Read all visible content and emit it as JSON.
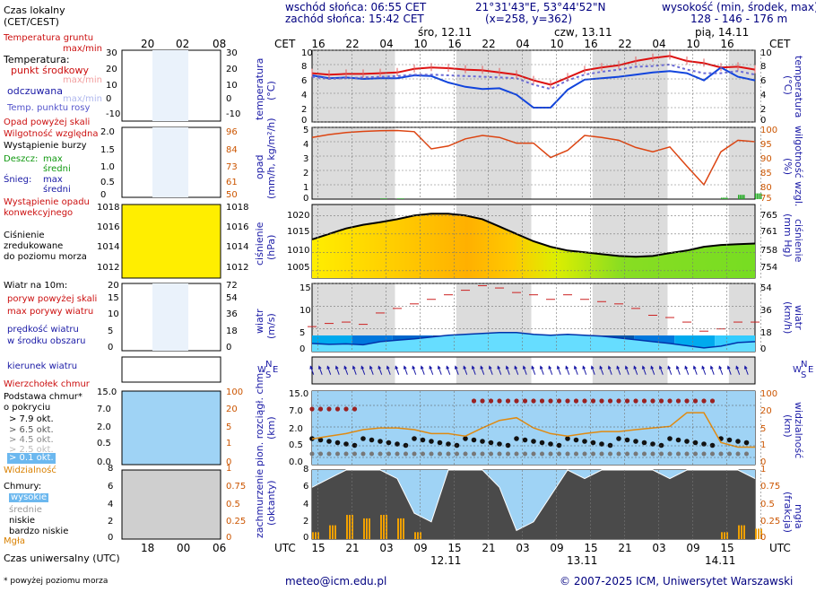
{
  "header": {
    "sunrise": "wschód słońca: 06:55 CET",
    "sunset": "zachód słońca: 15:42 CET",
    "coords": "21°31'43\"E, 53°44'52\"N",
    "grid": "(x=258,  y=362)",
    "elev_label": "wysokość (min, środek, max)",
    "elev_values": "128 - 146 - 176 m"
  },
  "top_axis": {
    "cet": "CET",
    "days": [
      "śro, 12.11",
      "czw, 13.11",
      "pią, 14.11"
    ],
    "hours": [
      "16",
      "22",
      "04",
      "10",
      "16",
      "22",
      "04",
      "10",
      "16",
      "22",
      "04",
      "10",
      "16"
    ]
  },
  "bottom_axis": {
    "utc": "UTC",
    "hours": [
      "15",
      "21",
      "03",
      "09",
      "15",
      "21",
      "03",
      "09",
      "15",
      "21",
      "03",
      "09",
      "15"
    ],
    "dates": [
      "12.11",
      "13.11",
      "14.11"
    ]
  },
  "legend": {
    "local_time": "Czas lokalny",
    "local_time_zone": "(CET/CEST)",
    "small_top_hours": [
      "20",
      "02",
      "08"
    ],
    "small_bottom_hours": [
      "18",
      "00",
      "06"
    ],
    "ground_temp": "Temperatura gruntu",
    "maxmin": "max/min",
    "temperature": "Temperatura:",
    "mid_point": "punkt środkowy",
    "max_min": "max/min",
    "felt": "odczuwana",
    "felt_maxmin": "max/min",
    "dew_point": "Temp. punktu rosy",
    "precip_above": "Opad powyżej skali",
    "humidity": "Wilgotność względna",
    "storm": "Wystąpienie burzy",
    "rain": "Deszcz:",
    "max": "max",
    "avg": "średni",
    "snow": "Śnieg:",
    "snow_max": "max",
    "snow_avg": "średni",
    "precip_occur_1": "Wystąpienie opadu",
    "precip_occur_2": "konwekcyjnego",
    "pressure_1": "Ciśnienie",
    "pressure_2": "zredukowane",
    "pressure_3": "do poziomu morza",
    "wind_10m": "Wiatr na 10m:",
    "gusts_above": "poryw powyżej skali",
    "max_gusts": "max porywy wiatru",
    "wind_speed_1": "prędkość wiatru",
    "wind_speed_2": "w środku obszaru",
    "wind_dir": "kierunek wiatru",
    "cloud_top": "Wierzchołek chmur",
    "cloud_base_1": "Podstawa chmur*",
    "cloud_base_2": "o pokryciu",
    "okt": [
      "> 7.9 okt.",
      "> 6.5 okt.",
      "> 4.5 okt.",
      "> 2.5 okt.",
      "> 0.1 okt."
    ],
    "visibility": "Widzialność",
    "clouds": "Chmury:",
    "high": "wysokie",
    "middle": "średnie",
    "low": "niskie",
    "very_low": "bardzo niskie",
    "fog": "Mgła",
    "utc_label": "Czas uniwersalny (UTC)",
    "footnote": "* powyżej poziomu morza"
  },
  "axis_labels": {
    "temp_left": "temperatura",
    "temp_left_unit": "(°C)",
    "temp_right": "temperatura",
    "temp_right_unit": "(°C)",
    "precip_left": "opad",
    "precip_left_unit": "(mm/h, kg/m²/h)",
    "precip_right": "wilgotność wzgl.",
    "precip_right_unit": "(%)",
    "press_left": "ciśnienie",
    "press_left_unit": "(hPa)",
    "press_right": "ciśnienie",
    "press_right_unit": "(mm Hg)",
    "wind_left": "wiatr",
    "wind_left_unit": "(m/s)",
    "wind_right": "wiatr",
    "wind_right_unit": "(km/h)",
    "cloudbase_left": "pion. rozciągł. chm.",
    "cloudbase_left_unit": "(km)",
    "cloudbase_right": "widzialność",
    "cloudbase_right_unit": "(km)",
    "cover_left": "zachmurzenie",
    "cover_left_unit": "(oktanty)",
    "cover_right": "mgła",
    "cover_right_unit": "(frakcja)"
  },
  "ticks": {
    "temp": [
      "10",
      "8",
      "6",
      "4",
      "2",
      "0"
    ],
    "precip_left": [
      "5",
      "4",
      "3",
      "2",
      "1",
      "0"
    ],
    "precip_right": [
      "100",
      "95",
      "90",
      "85",
      "80",
      "75"
    ],
    "press_left": [
      "1020",
      "1015",
      "1010",
      "1005"
    ],
    "press_right": [
      "765",
      "761",
      "758",
      "754"
    ],
    "wind_left": [
      "15",
      "10",
      "5",
      "0"
    ],
    "wind_right": [
      "54",
      "36",
      "18",
      "0"
    ],
    "cb_left": [
      "15.0",
      "7.0",
      "2.0",
      "0.5",
      "0.0"
    ],
    "cb_right": [
      "100",
      "20",
      "5",
      "1",
      "0"
    ],
    "cov_left": [
      "8",
      "6",
      "4",
      "2",
      "0"
    ],
    "cov_right": [
      "1",
      "0.75",
      "0.5",
      "0.25",
      "0"
    ],
    "leg_temp_l": [
      "30",
      "20",
      "10",
      "0",
      "-10"
    ],
    "leg_temp_r": [
      "30",
      "20",
      "10",
      "0",
      "-10"
    ],
    "leg_prec_l": [
      "2.0",
      "1.5",
      "1.0",
      "0.5",
      "0"
    ],
    "leg_prec_r": [
      "96",
      "84",
      "73",
      "61",
      "50"
    ],
    "leg_press_l": [
      "1018",
      "1016",
      "1014",
      "1012"
    ],
    "leg_press_r": [
      "1018",
      "1016",
      "1014",
      "1012"
    ],
    "leg_wind_l": [
      "20",
      "15",
      "10",
      "5",
      "0"
    ],
    "leg_wind_r": [
      "72",
      "54",
      "36",
      "18",
      "0"
    ],
    "leg_cb_l": [
      "15.0",
      "7.0",
      "2.0",
      "0.5",
      "0.0"
    ],
    "leg_cb_r": [
      "100",
      "20",
      "5",
      "1",
      "0"
    ],
    "leg_cov_l": [
      "8",
      "6",
      "4",
      "2",
      "0"
    ],
    "leg_cov_r": [
      "1",
      "0.75",
      "0.5",
      "0.25",
      "0"
    ]
  },
  "wind_dir_letters": {
    "n": "N",
    "w": "W",
    "s": "S",
    "e": "E"
  },
  "footer": {
    "email": "meteo@icm.edu.pl",
    "copyright": "© 2007-2025 ICM, Uniwersytet Warszawski"
  },
  "colors": {
    "red": "#dd1111",
    "blue": "#1144dd",
    "orange": "#e07a10",
    "sky": "#9fd3f5",
    "gray_band": "#d8d8d8"
  },
  "chart_data": [
    {
      "type": "line",
      "title": "temperatura (°C)",
      "x": [
        0,
        3,
        6,
        9,
        12,
        15,
        18,
        21,
        24,
        27,
        30,
        33,
        36,
        39,
        42,
        45,
        48,
        51,
        54,
        57,
        60,
        63,
        66,
        69,
        72,
        75,
        78
      ],
      "series": [
        {
          "name": "temperatura (punkt środkowy)",
          "values": [
            6.8,
            6.6,
            6.7,
            6.7,
            6.8,
            6.9,
            7.4,
            7.6,
            7.5,
            7.3,
            7.2,
            6.9,
            6.6,
            5.8,
            5.2,
            6.2,
            7.2,
            7.6,
            7.9,
            8.5,
            8.9,
            9.2,
            8.5,
            8.2,
            7.6,
            7.7,
            7.3
          ]
        },
        {
          "name": "temperatura odczuwana",
          "values": [
            6.5,
            6.1,
            6.2,
            6.0,
            6.1,
            6.1,
            6.5,
            6.4,
            5.5,
            4.9,
            4.6,
            4.7,
            3.8,
            2.0,
            2.0,
            4.5,
            5.9,
            6.1,
            6.3,
            6.6,
            6.9,
            7.1,
            6.8,
            5.8,
            7.6,
            6.3,
            5.8
          ]
        },
        {
          "name": "temperatura punktu rosy",
          "values": [
            6.3,
            6.0,
            6.1,
            6.2,
            6.3,
            6.4,
            6.6,
            6.6,
            6.5,
            6.4,
            6.3,
            6.2,
            6.1,
            5.2,
            4.6,
            5.8,
            6.6,
            7.0,
            7.3,
            7.7,
            7.8,
            8.0,
            7.3,
            6.8,
            6.8,
            7.1,
            6.6
          ]
        }
      ],
      "ylim": [
        0,
        10
      ]
    },
    {
      "type": "line",
      "title": "opad (mm/h) / wilgotność wzgl. (%)",
      "x": [
        0,
        3,
        6,
        9,
        12,
        15,
        18,
        21,
        24,
        27,
        30,
        33,
        36,
        39,
        42,
        45,
        48,
        51,
        54,
        57,
        60,
        63,
        66,
        69,
        72,
        75,
        78
      ],
      "series": [
        {
          "name": "wilgotność względna",
          "values": [
            96.5,
            97.5,
            98.2,
            98.6,
            98.8,
            98.9,
            98.5,
            92.5,
            93.5,
            96.0,
            97.2,
            96.5,
            94.5,
            94.5,
            89.5,
            92.0,
            97.2,
            96.5,
            95.5,
            93.0,
            91.5,
            93.2,
            86.5,
            80.0,
            91.5,
            95.5,
            95.0
          ]
        },
        {
          "name": "opad",
          "values": [
            0,
            0,
            0,
            0,
            0.05,
            0.05,
            0,
            0,
            0,
            0,
            0,
            0,
            0,
            0,
            0,
            0,
            0,
            0,
            0,
            0,
            0,
            0,
            0,
            0,
            0.1,
            0.3,
            0.4
          ]
        }
      ],
      "ylim": [
        0,
        5
      ],
      "y2lim": [
        75,
        100
      ]
    },
    {
      "type": "area",
      "title": "ciśnienie (hPa)",
      "x": [
        0,
        3,
        6,
        9,
        12,
        15,
        18,
        21,
        24,
        27,
        30,
        33,
        36,
        39,
        42,
        45,
        48,
        51,
        54,
        57,
        60,
        63,
        66,
        69,
        72,
        75,
        78
      ],
      "values": [
        1013.5,
        1015.0,
        1016.5,
        1017.5,
        1018.2,
        1019.0,
        1020.0,
        1020.5,
        1020.5,
        1020.0,
        1019.0,
        1017.0,
        1015.0,
        1013.0,
        1011.5,
        1010.5,
        1010.0,
        1009.5,
        1009.0,
        1008.8,
        1009.0,
        1009.8,
        1010.5,
        1011.5,
        1012.0,
        1012.2,
        1012.4
      ],
      "ylim": [
        1003,
        1023
      ]
    },
    {
      "type": "line",
      "title": "wiatr (m/s)",
      "x": [
        0,
        3,
        6,
        9,
        12,
        15,
        18,
        21,
        24,
        27,
        30,
        33,
        36,
        39,
        42,
        45,
        48,
        51,
        54,
        57,
        60,
        63,
        66,
        69,
        72,
        75,
        78
      ],
      "series": [
        {
          "name": "max porywy wiatru",
          "values": [
            5.5,
            6.2,
            6.5,
            6.0,
            8.5,
            9.5,
            10.5,
            11.5,
            12.5,
            13.5,
            14.5,
            14.0,
            13.0,
            12.5,
            11.5,
            12.5,
            11.5,
            11.0,
            10.5,
            9.5,
            8.0,
            7.5,
            6.5,
            4.5,
            5.0,
            6.5,
            6.5
          ]
        },
        {
          "name": "prędkość wiatru",
          "values": [
            1.8,
            1.6,
            1.7,
            1.5,
            2.2,
            2.5,
            2.8,
            3.2,
            3.6,
            3.8,
            4.0,
            4.2,
            4.2,
            3.8,
            3.6,
            3.8,
            3.6,
            3.4,
            3.0,
            2.6,
            2.2,
            1.8,
            1.3,
            0.8,
            1.2,
            2.0,
            2.2
          ]
        }
      ],
      "ylim": [
        0,
        15
      ]
    },
    {
      "type": "line",
      "title": "pion. rozciągł. chm. (km) / widzialność (km)",
      "x": [
        0,
        3,
        6,
        9,
        12,
        15,
        18,
        21,
        24,
        27,
        30,
        33,
        36,
        39,
        42,
        45,
        48,
        51,
        54,
        57,
        60,
        63,
        66,
        69,
        72,
        75,
        78
      ],
      "series": [
        {
          "name": "widzialność",
          "values": [
            4,
            5,
            6,
            8,
            9,
            9,
            8,
            6,
            6,
            5,
            9,
            15,
            18,
            9,
            6,
            5,
            6,
            7,
            7,
            8,
            9,
            10,
            25,
            25,
            3,
            2,
            2
          ]
        }
      ],
      "ylim": [
        0,
        15
      ]
    },
    {
      "type": "area",
      "title": "zachmurzenie (oktanty) / mgła (frakcja)",
      "x": [
        0,
        3,
        6,
        9,
        12,
        15,
        18,
        21,
        24,
        27,
        30,
        33,
        36,
        39,
        42,
        45,
        48,
        51,
        54,
        57,
        60,
        63,
        66,
        69,
        72,
        75,
        78
      ],
      "series": [
        {
          "name": "zachmurzenie",
          "values": [
            6,
            7,
            8,
            8,
            8,
            7,
            3,
            2,
            8,
            8,
            8,
            6,
            1,
            2,
            5,
            8,
            7,
            8,
            8,
            8,
            8,
            7,
            8,
            8,
            8,
            8,
            7
          ]
        },
        {
          "name": "mgła",
          "values": [
            0.1,
            0.2,
            0.35,
            0.3,
            0.35,
            0.3,
            0.1,
            0,
            0,
            0,
            0,
            0,
            0,
            0,
            0,
            0,
            0,
            0,
            0,
            0,
            0,
            0,
            0,
            0,
            0.1,
            0.2,
            0.15
          ]
        }
      ],
      "ylim": [
        0,
        8
      ],
      "y2lim": [
        0,
        1
      ]
    }
  ]
}
